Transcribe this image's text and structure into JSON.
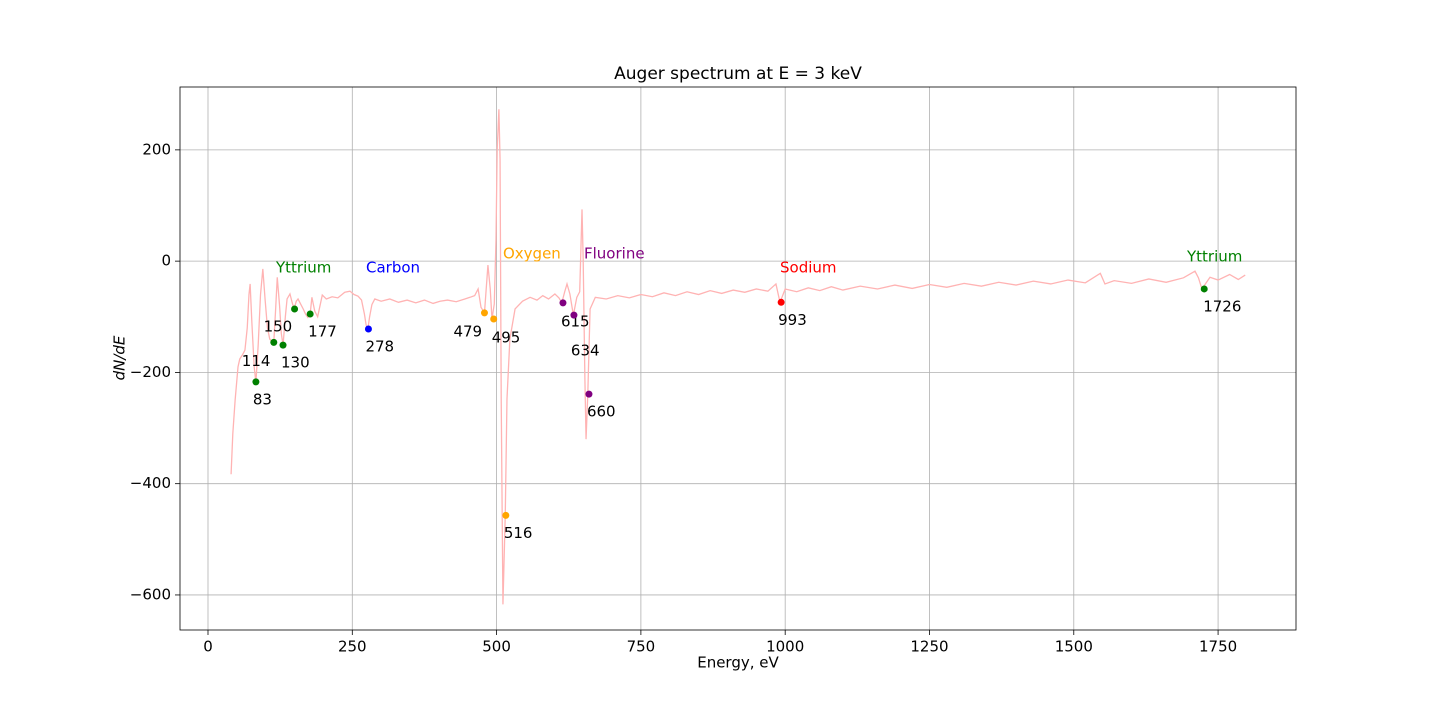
{
  "chart_data": {
    "type": "line",
    "title": "Auger spectrum at E = 3 keV",
    "x_label": "Energy, eV",
    "y_label": "dN/dE",
    "xlim": [
      -48.5,
      1885
    ],
    "ylim": [
      -663,
      313
    ],
    "xticks": [
      0,
      250,
      500,
      750,
      1000,
      1250,
      1500,
      1750
    ],
    "yticks": [
      {
        "value": -600,
        "label": "−600"
      },
      {
        "value": -400,
        "label": "−400"
      },
      {
        "value": -200,
        "label": "−200"
      },
      0,
      200
    ],
    "grid": true,
    "series": [
      {
        "type": "line",
        "color": "#ffb3b3",
        "x": [
          40,
          43,
          47,
          52,
          55,
          60,
          64,
          68,
          71,
          73,
          76,
          80,
          83,
          87,
          91,
          95,
          99,
          103,
          107,
          111,
          114,
          117,
          120,
          124,
          127,
          130,
          134,
          137,
          142,
          146,
          149,
          153,
          156,
          161,
          165,
          169,
          173,
          177,
          180,
          185,
          190,
          198,
          205,
          215,
          225,
          237,
          246,
          253,
          260,
          266,
          271,
          274,
          277,
          280,
          284,
          289,
          300,
          315,
          330,
          345,
          360,
          375,
          390,
          402,
          415,
          430,
          445,
          454,
          462,
          468,
          473,
          479,
          485,
          489,
          492,
          496,
          499,
          501,
          504,
          506,
          508,
          511,
          515,
          518,
          523,
          532,
          545,
          558,
          570,
          580,
          590,
          601,
          608,
          613,
          618,
          622,
          627,
          633,
          639,
          644,
          648,
          650,
          653,
          655,
          658,
          662,
          671,
          690,
          710,
          730,
          750,
          770,
          790,
          810,
          830,
          850,
          870,
          890,
          910,
          930,
          950,
          970,
          984,
          991,
          1000,
          1020,
          1040,
          1060,
          1080,
          1100,
          1130,
          1160,
          1190,
          1220,
          1250,
          1280,
          1310,
          1340,
          1370,
          1400,
          1430,
          1460,
          1490,
          1520,
          1546,
          1554,
          1570,
          1600,
          1630,
          1660,
          1690,
          1710,
          1716,
          1722,
          1730,
          1736,
          1750,
          1770,
          1785,
          1797
        ],
        "values": [
          -383,
          -310,
          -250,
          -190,
          -176,
          -168,
          -160,
          -120,
          -60,
          -41,
          -110,
          -190,
          -218,
          -150,
          -60,
          -14,
          -70,
          -120,
          -140,
          -145,
          -146,
          -90,
          -29,
          -80,
          -130,
          -151,
          -100,
          -68,
          -59,
          -75,
          -86,
          -72,
          -68,
          -78,
          -86,
          -95,
          -101,
          -95,
          -65,
          -90,
          -100,
          -61,
          -68,
          -64,
          -66,
          -56,
          -54,
          -60,
          -63,
          -70,
          -95,
          -115,
          -122,
          -100,
          -78,
          -68,
          -72,
          -68,
          -74,
          -70,
          -75,
          -70,
          -76,
          -72,
          -70,
          -73,
          -68,
          -65,
          -62,
          -50,
          -83,
          -93,
          -7,
          -50,
          -104,
          -77,
          40,
          200,
          273,
          183,
          -248,
          -617,
          -457,
          -248,
          -140,
          -86,
          -72,
          -65,
          -70,
          -62,
          -68,
          -59,
          -66,
          -75,
          -55,
          -41,
          -59,
          -97,
          -65,
          -55,
          93,
          4,
          -212,
          -320,
          -239,
          -86,
          -65,
          -68,
          -62,
          -66,
          -60,
          -64,
          -57,
          -62,
          -55,
          -60,
          -53,
          -58,
          -52,
          -56,
          -50,
          -54,
          -41,
          -74,
          -50,
          -55,
          -48,
          -53,
          -46,
          -52,
          -45,
          -50,
          -43,
          -49,
          -42,
          -47,
          -40,
          -45,
          -38,
          -43,
          -36,
          -41,
          -34,
          -39,
          -22,
          -41,
          -35,
          -40,
          -32,
          -38,
          -30,
          -18,
          -30,
          -50,
          -38,
          -29,
          -34,
          -24,
          -33,
          -25
        ]
      },
      {
        "type": "scatter",
        "name": "Yttrium",
        "color": "#008000",
        "x": [
          83,
          114,
          130,
          150,
          177
        ],
        "values": [
          -217,
          -146,
          -151,
          -86,
          -95
        ]
      },
      {
        "type": "scatter",
        "name": "Carbon",
        "color": "#0000ff",
        "x": [
          278
        ],
        "values": [
          -122
        ]
      },
      {
        "type": "scatter",
        "name": "Oxygen",
        "color": "#ffa500",
        "x": [
          479,
          495,
          516
        ],
        "values": [
          -93,
          -104,
          -457
        ]
      },
      {
        "type": "scatter",
        "name": "Fluorine",
        "color": "#800080",
        "x": [
          615,
          634,
          660
        ],
        "values": [
          -75,
          -97,
          -239
        ]
      },
      {
        "type": "scatter",
        "name": "Sodium",
        "color": "#ff0000",
        "x": [
          993
        ],
        "values": [
          -74
        ]
      },
      {
        "type": "scatter",
        "name": "Yttrium",
        "color": "#008000",
        "x": [
          1726
        ],
        "values": [
          -50
        ]
      }
    ]
  }
}
